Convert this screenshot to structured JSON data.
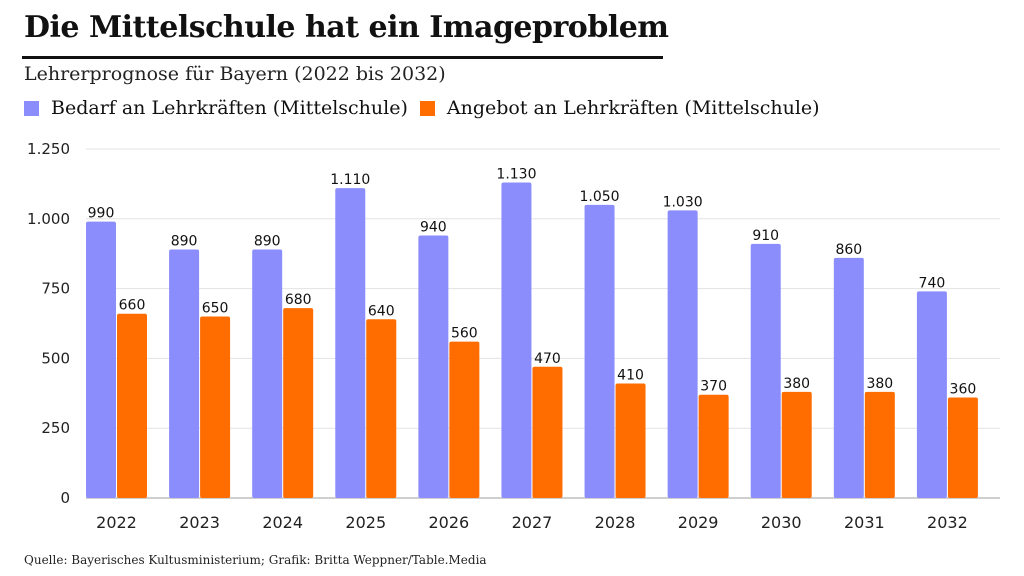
{
  "header": {
    "title": "Die Mittelschule hat ein Imageproblem",
    "subtitle": "Lehrerprognose für Bayern (2022 bis 2032)"
  },
  "legend": [
    {
      "label": "Bedarf an Lehrkräften (Mittelschule)",
      "color": "#8b8dfd"
    },
    {
      "label": "Angebot an Lehrkräften (Mittelschule)",
      "color": "#ff6d00"
    }
  ],
  "footer": {
    "source": "Quelle: Bayerisches Kultusministerium; Grafik: Britta Weppner/Table.Media"
  },
  "chart_data": {
    "type": "bar",
    "title": "Die Mittelschule hat ein Imageproblem",
    "subtitle": "Lehrerprognose für Bayern (2022 bis 2032)",
    "xlabel": "",
    "ylabel": "",
    "categories": [
      "2022",
      "2023",
      "2024",
      "2025",
      "2026",
      "2027",
      "2028",
      "2029",
      "2030",
      "2031",
      "2032"
    ],
    "series": [
      {
        "name": "Bedarf an Lehrkräften (Mittelschule)",
        "color": "#8b8dfd",
        "values": [
          990,
          890,
          890,
          1110,
          940,
          1130,
          1050,
          1030,
          910,
          860,
          740
        ]
      },
      {
        "name": "Angebot an Lehrkräften (Mittelschule)",
        "color": "#ff6d00",
        "values": [
          660,
          650,
          680,
          640,
          560,
          470,
          410,
          370,
          380,
          380,
          360
        ]
      }
    ],
    "ylim": [
      0,
      1250
    ],
    "yticks": [
      0,
      250,
      500,
      750,
      1000,
      1250
    ],
    "ytick_labels": [
      "0",
      "250",
      "500",
      "750",
      "1.000",
      "1.250"
    ],
    "grid": true,
    "legend_position": "top-left",
    "data_labels": true,
    "number_format": "de-DE"
  }
}
